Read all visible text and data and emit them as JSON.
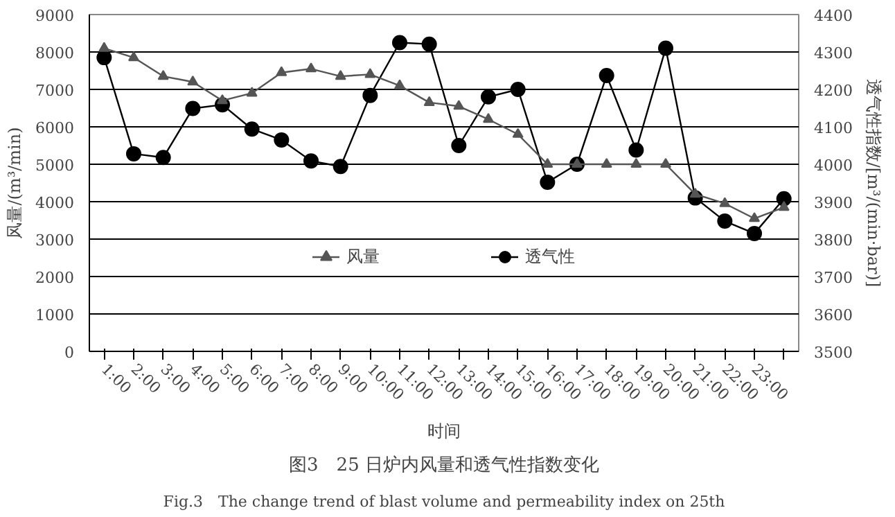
{
  "chart_data": {
    "type": "line",
    "xlabel": "时间",
    "ylabel": "风量/(m³/min)",
    "y2label": "透气性指数/[m³/(min·bar)]",
    "categories": [
      "1:00",
      "2:00",
      "3:00",
      "4:00",
      "5:00",
      "6:00",
      "7:00",
      "8:00",
      "9:00",
      "10:00",
      "11:00",
      "12:00",
      "13:00",
      "14:00",
      "15:00",
      "16:00",
      "17:00",
      "18:00",
      "19:00",
      "20:00",
      "21:00",
      "22:00",
      "23:00",
      null
    ],
    "series": [
      {
        "name": "风量",
        "color": "#555555",
        "marker": "triangle",
        "values": [
          8100,
          7850,
          7350,
          7200,
          6700,
          6900,
          7450,
          7550,
          7350,
          7400,
          7100,
          6650,
          6550,
          6200,
          5800,
          5000,
          5000,
          5000,
          5000,
          5000,
          4200,
          3950,
          3550,
          3850
        ]
      },
      {
        "name": "透气性",
        "color": "#000000",
        "marker": "circle",
        "axis": "y2",
        "values": [
          4285,
          4028,
          4018,
          4149,
          4159,
          4094,
          4065,
          4009,
          3994,
          4184,
          4325,
          4321,
          4050,
          4180,
          4200,
          3952,
          4000,
          4237,
          4038,
          4310,
          3910,
          3848,
          3815,
          3908
        ]
      }
    ],
    "ylim": [
      0,
      9000
    ],
    "yticks": [
      0,
      1000,
      2000,
      3000,
      4000,
      5000,
      6000,
      7000,
      8000,
      9000
    ],
    "y2lim": [
      3500,
      4400
    ],
    "y2ticks": [
      3500,
      3600,
      3700,
      3800,
      3900,
      4000,
      4100,
      4200,
      4300,
      4400
    ],
    "grid": "y",
    "legend": "bottom",
    "line_style": "solid",
    "annotations": [
      "图3　25 日炉内风量和透气性指数变化",
      "Fig.3　The change trend of blast volume and permeability index on 25th"
    ]
  }
}
